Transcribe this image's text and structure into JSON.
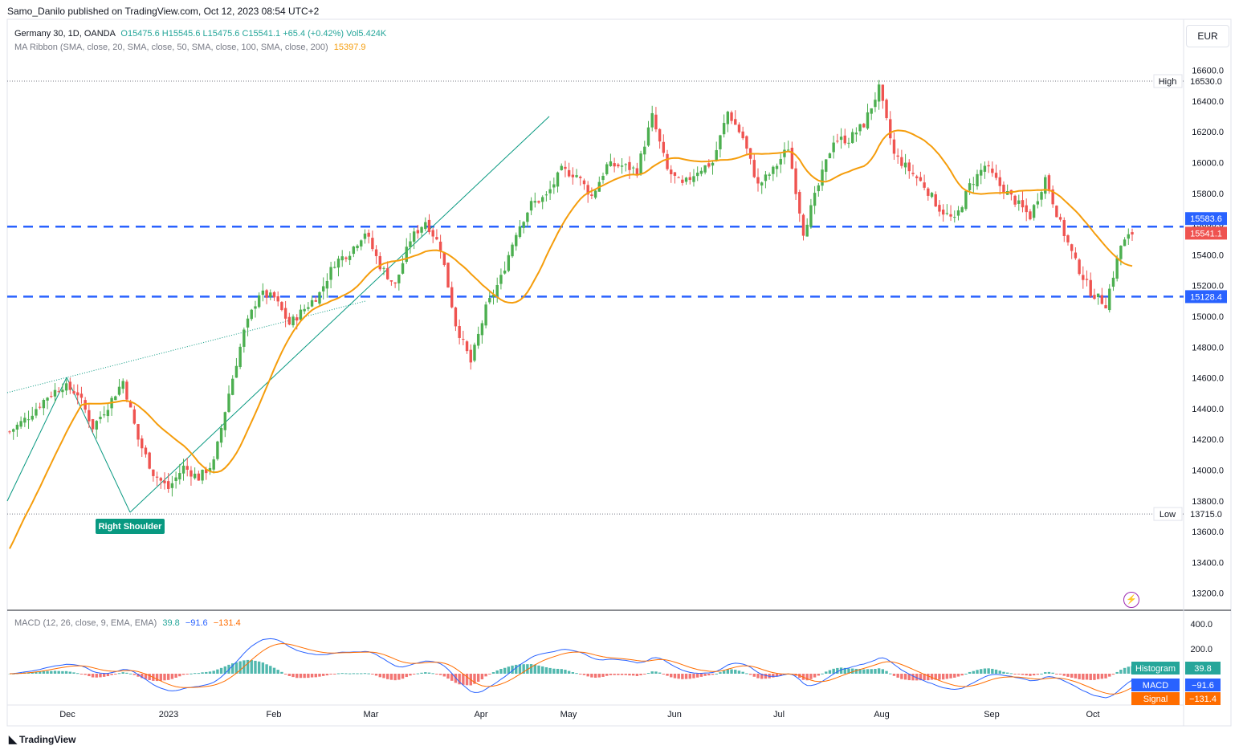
{
  "header": {
    "publisher": "Samo_Danilo published on TradingView.com, Oct 12, 2023 08:54 UTC+2"
  },
  "legend": {
    "symbol": "Germany 30, 1D, OANDA",
    "ohlc": "O15475.6  H15545.6  L15475.6  C15541.1  +65.4 (+0.42%)  Vol5.424K",
    "ma_label": "MA Ribbon (SMA, close, 20, SMA, close, 50, SMA, close, 100, SMA, close, 200)",
    "ma_value": "15397.9",
    "macd_label": "MACD (12, 26, close, 9, EMA, EMA)",
    "macd_hist": "39.8",
    "macd_macd": "−91.6",
    "macd_signal": "−131.4"
  },
  "currency": "EUR",
  "footer": "TradingView",
  "colors": {
    "up": "#26a69a",
    "candle_up": "#4caf50",
    "candle_down": "#ef5350",
    "ma": "#f59d0c",
    "level": "#2962ff",
    "trend": "#089981",
    "macd": "#2962ff",
    "signal": "#ff6d00"
  },
  "chart_data": {
    "type": "candlestick",
    "price_axis": {
      "ticks": [
        "16600.0",
        "16400.0",
        "16200.0",
        "16000.0",
        "15800.0",
        "15600.0",
        "15400.0",
        "15200.0",
        "15000.0",
        "14800.0",
        "14600.0",
        "14400.0",
        "14200.0",
        "14000.0",
        "13800.0",
        "13600.0",
        "13400.0",
        "13200.0"
      ],
      "range": [
        13100,
        16700
      ]
    },
    "time_axis": [
      "Dec",
      "2023",
      "Feb",
      "Mar",
      "Apr",
      "May",
      "Jun",
      "Jul",
      "Aug",
      "Sep",
      "Oct"
    ],
    "labels": {
      "high": {
        "label": "High",
        "value": "16530.0"
      },
      "low": {
        "label": "Low",
        "value": "13715.0"
      },
      "level_upper": "15583.6",
      "last_price": "15541.1",
      "level_lower": "15128.4"
    },
    "annotation": "Right Shoulder",
    "macd_axis": [
      "400.0",
      "200.0"
    ],
    "macd_tags": {
      "histogram_label": "Histogram",
      "histogram": "39.8",
      "macd_label": "MACD",
      "macd": "−91.6",
      "signal_label": "Signal",
      "signal": "−131.4"
    },
    "anchors": [
      [
        0,
        14250
      ],
      [
        5,
        14350
      ],
      [
        10,
        14480
      ],
      [
        14,
        14550
      ],
      [
        18,
        14500
      ],
      [
        22,
        14280
      ],
      [
        26,
        14420
      ],
      [
        30,
        14580
      ],
      [
        34,
        14200
      ],
      [
        38,
        13980
      ],
      [
        42,
        13880
      ],
      [
        46,
        14020
      ],
      [
        50,
        13950
      ],
      [
        54,
        14050
      ],
      [
        58,
        14500
      ],
      [
        62,
        14900
      ],
      [
        66,
        15150
      ],
      [
        70,
        15120
      ],
      [
        74,
        14950
      ],
      [
        78,
        15050
      ],
      [
        82,
        15150
      ],
      [
        86,
        15350
      ],
      [
        90,
        15420
      ],
      [
        94,
        15550
      ],
      [
        98,
        15330
      ],
      [
        102,
        15200
      ],
      [
        106,
        15500
      ],
      [
        110,
        15620
      ],
      [
        114,
        15450
      ],
      [
        118,
        14950
      ],
      [
        122,
        14700
      ],
      [
        126,
        15050
      ],
      [
        130,
        15250
      ],
      [
        134,
        15550
      ],
      [
        138,
        15730
      ],
      [
        142,
        15780
      ],
      [
        146,
        15950
      ],
      [
        150,
        15920
      ],
      [
        154,
        15780
      ],
      [
        158,
        15980
      ],
      [
        162,
        15980
      ],
      [
        166,
        15950
      ],
      [
        170,
        16300
      ],
      [
        174,
        15950
      ],
      [
        178,
        15850
      ],
      [
        182,
        15950
      ],
      [
        186,
        16000
      ],
      [
        190,
        16330
      ],
      [
        194,
        16160
      ],
      [
        198,
        15850
      ],
      [
        202,
        15950
      ],
      [
        206,
        16100
      ],
      [
        210,
        15550
      ],
      [
        214,
        15850
      ],
      [
        218,
        16150
      ],
      [
        222,
        16150
      ],
      [
        226,
        16250
      ],
      [
        230,
        16480
      ],
      [
        234,
        16050
      ],
      [
        238,
        15950
      ],
      [
        242,
        15850
      ],
      [
        246,
        15700
      ],
      [
        250,
        15620
      ],
      [
        254,
        15850
      ],
      [
        258,
        15980
      ],
      [
        262,
        15850
      ],
      [
        266,
        15750
      ],
      [
        270,
        15650
      ],
      [
        274,
        15900
      ],
      [
        278,
        15600
      ],
      [
        282,
        15350
      ],
      [
        286,
        15160
      ],
      [
        290,
        15080
      ],
      [
        294,
        15460
      ],
      [
        297,
        15541
      ]
    ]
  }
}
